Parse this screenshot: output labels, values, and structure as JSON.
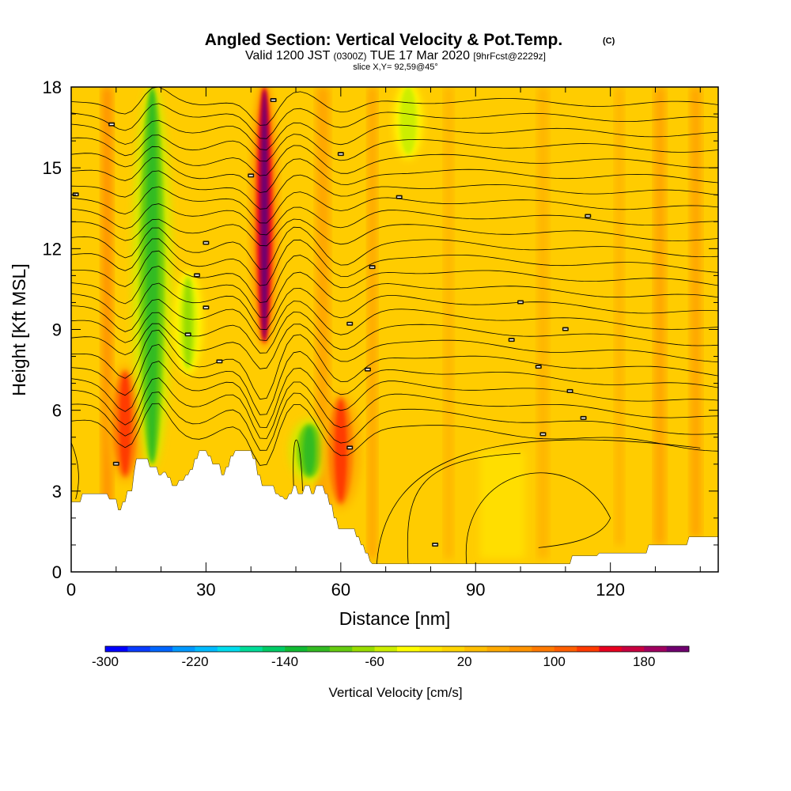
{
  "title": {
    "main": "Angled Section: Vertical Velocity & Pot.Temp.",
    "copyright": "(C)",
    "valid_prefix": "Valid 1200 JST",
    "valid_utc": "(0300Z)",
    "valid_date": "TUE 17 Mar 2020",
    "forecast": "[9hrFcst@2229z]",
    "slice": "slice X,Y= 92,59@45°"
  },
  "chart_data": {
    "type": "heatmap",
    "title": "Angled Section: Vertical Velocity & Pot.Temp.",
    "xlabel": "Distance [nm]",
    "ylabel": "Height [Kft MSL]",
    "xlim": [
      0,
      144
    ],
    "ylim": [
      0,
      18
    ],
    "x_ticks": [
      0,
      30,
      60,
      90,
      120
    ],
    "y_ticks": [
      0,
      3,
      6,
      9,
      12,
      15,
      18
    ],
    "background_value_cm_s": 20,
    "velocity_features": [
      {
        "x": 12,
        "y_range": [
          3.5,
          7.5
        ],
        "value": 120
      },
      {
        "x": 18,
        "y_range": [
          4,
          18
        ],
        "value": -120
      },
      {
        "x": 26,
        "y_range": [
          7.5,
          11
        ],
        "value": -70
      },
      {
        "x": 43,
        "y_range": [
          8.5,
          18
        ],
        "value": 200
      },
      {
        "x": 53,
        "y_range": [
          3.5,
          5.5
        ],
        "value": -110
      },
      {
        "x": 60,
        "y_range": [
          2.5,
          6.5
        ],
        "value": 130
      },
      {
        "x": 75,
        "y_range": [
          15.5,
          18
        ],
        "value": -60
      }
    ],
    "isentropes_note": "Potential temperature contours (black lines) labelled in small white text",
    "colorbar": {
      "label": "Vertical Velocity [cm/s]",
      "min": -300,
      "max": 220,
      "step": 20,
      "tick_labels": [
        "-300",
        "-220",
        "-140",
        "-60",
        "20",
        "100",
        "180"
      ],
      "tick_values": [
        -300,
        -220,
        -140,
        -60,
        20,
        100,
        180
      ],
      "colors": [
        "#0000ff",
        "#0a3cff",
        "#0066ff",
        "#0099ff",
        "#00bbff",
        "#00ddee",
        "#00dd99",
        "#00cc66",
        "#11bb33",
        "#33bb22",
        "#66cc11",
        "#99dd00",
        "#ccee00",
        "#ffff00",
        "#ffe600",
        "#ffd500",
        "#ffbf00",
        "#ffaa00",
        "#ff9400",
        "#ff7a00",
        "#ff5f00",
        "#ff3a00",
        "#e80020",
        "#c80040",
        "#a00060",
        "#700070"
      ]
    },
    "terrain_note": "Terrain in white, heights in Kft",
    "terrain": [
      [
        0,
        2.6
      ],
      [
        2,
        2.6
      ],
      [
        2.5,
        2.9
      ],
      [
        8,
        2.9
      ],
      [
        8.5,
        2.7
      ],
      [
        10,
        2.7
      ],
      [
        10.5,
        2.3
      ],
      [
        11,
        2.3
      ],
      [
        11.5,
        2.6
      ],
      [
        12,
        2.6
      ],
      [
        12.5,
        3.0
      ],
      [
        13.5,
        3.0
      ],
      [
        14,
        3.7
      ],
      [
        14.5,
        4.2
      ],
      [
        17,
        4.2
      ],
      [
        17.5,
        3.9
      ],
      [
        19,
        3.9
      ],
      [
        19.5,
        3.6
      ],
      [
        20,
        3.6
      ],
      [
        20.5,
        3.7
      ],
      [
        21,
        3.7
      ],
      [
        21.5,
        3.5
      ],
      [
        22,
        3.5
      ],
      [
        22.5,
        3.2
      ],
      [
        23.5,
        3.2
      ],
      [
        24,
        3.4
      ],
      [
        25,
        3.4
      ],
      [
        25.5,
        3.6
      ],
      [
        26,
        3.6
      ],
      [
        26.5,
        3.8
      ],
      [
        27,
        3.8
      ],
      [
        27.5,
        4.2
      ],
      [
        28,
        4.2
      ],
      [
        28.5,
        4.5
      ],
      [
        30,
        4.5
      ],
      [
        30.5,
        4.3
      ],
      [
        31,
        4.3
      ],
      [
        31.5,
        4.0
      ],
      [
        33,
        4.0
      ],
      [
        33.5,
        3.6
      ],
      [
        34,
        3.6
      ],
      [
        34.5,
        3.9
      ],
      [
        35,
        3.9
      ],
      [
        35.5,
        4.3
      ],
      [
        36,
        4.3
      ],
      [
        36.5,
        4.5
      ],
      [
        40,
        4.5
      ],
      [
        40.5,
        4.2
      ],
      [
        41,
        4.2
      ],
      [
        41.5,
        3.6
      ],
      [
        42,
        3.6
      ],
      [
        42.5,
        3.2
      ],
      [
        45,
        3.2
      ],
      [
        45.5,
        2.9
      ],
      [
        46,
        2.9
      ],
      [
        46.5,
        2.8
      ],
      [
        47,
        2.8
      ],
      [
        47.5,
        2.7
      ],
      [
        48,
        2.7
      ],
      [
        48.5,
        2.9
      ],
      [
        49,
        2.9
      ],
      [
        49.5,
        3.2
      ],
      [
        50,
        3.2
      ],
      [
        50.5,
        2.9
      ],
      [
        51.5,
        2.9
      ],
      [
        52,
        3.2
      ],
      [
        53,
        3.2
      ],
      [
        53.5,
        2.9
      ],
      [
        54,
        2.9
      ],
      [
        54.5,
        3.2
      ],
      [
        56,
        3.2
      ],
      [
        56.5,
        2.9
      ],
      [
        57,
        2.9
      ],
      [
        57.5,
        2.5
      ],
      [
        58,
        2.5
      ],
      [
        58.5,
        2.0
      ],
      [
        59,
        2.0
      ],
      [
        59.5,
        1.6
      ],
      [
        63,
        1.6
      ],
      [
        63.5,
        1.3
      ],
      [
        64,
        1.3
      ],
      [
        64.5,
        1.0
      ],
      [
        65,
        1.0
      ],
      [
        65.5,
        0.7
      ],
      [
        66,
        0.7
      ],
      [
        66.5,
        0.4
      ],
      [
        67,
        0.3
      ],
      [
        76,
        0.3
      ],
      [
        100,
        0.3
      ],
      [
        111,
        0.3
      ],
      [
        111.5,
        0.6
      ],
      [
        117,
        0.6
      ],
      [
        117.5,
        0.7
      ],
      [
        128,
        0.7
      ],
      [
        128.5,
        1.0
      ],
      [
        137,
        1.0
      ],
      [
        137.5,
        1.3
      ],
      [
        144,
        1.3
      ]
    ]
  },
  "colors": {
    "field_background": "#ffcc00",
    "contour_line": "#000000",
    "terrain": "#ffffff",
    "frame": "#000000"
  }
}
